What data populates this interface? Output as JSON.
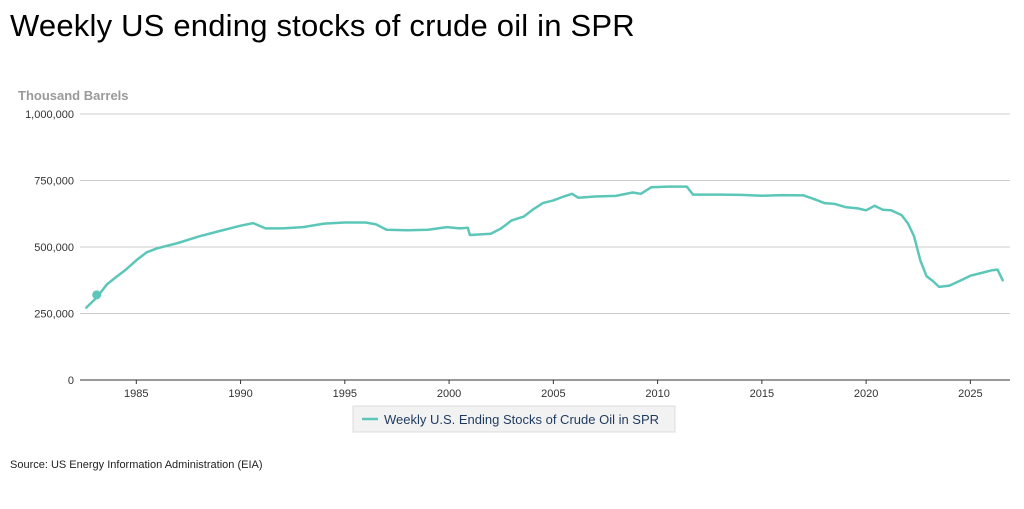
{
  "chart_data": {
    "type": "line",
    "title": "Weekly US ending stocks of crude oil in SPR",
    "ylabel": "Thousand Barrels",
    "xlabel": "",
    "xlim": [
      1982.3,
      2026.9
    ],
    "ylim": [
      0,
      1000000
    ],
    "x_ticks": [
      1985,
      1990,
      1995,
      2000,
      2005,
      2010,
      2015,
      2020,
      2025
    ],
    "y_ticks": [
      0,
      250000,
      500000,
      750000,
      1000000
    ],
    "y_tick_labels": [
      "0",
      "250,000",
      "500,000",
      "750,000",
      "1,000,000"
    ],
    "grid": "horizontal",
    "legend": "bottom-center",
    "source": "Source: US Energy Information Administration (EIA)",
    "colors": {
      "series": "#5cc7b8",
      "grid": "#cccccc",
      "axis": "#333333"
    },
    "series": [
      {
        "name": "Weekly U.S. Ending Stocks of Crude Oil in SPR",
        "marker": {
          "x": 1983.1,
          "y": 320000
        },
        "points": [
          [
            1982.6,
            272000
          ],
          [
            1983.1,
            310000
          ],
          [
            1983.6,
            360000
          ],
          [
            1984.0,
            385000
          ],
          [
            1984.5,
            415000
          ],
          [
            1985.0,
            450000
          ],
          [
            1985.5,
            480000
          ],
          [
            1986.0,
            495000
          ],
          [
            1987.0,
            515000
          ],
          [
            1988.0,
            540000
          ],
          [
            1989.0,
            560000
          ],
          [
            1990.0,
            580000
          ],
          [
            1990.6,
            590000
          ],
          [
            1991.2,
            570000
          ],
          [
            1992.0,
            570000
          ],
          [
            1993.0,
            575000
          ],
          [
            1994.0,
            588000
          ],
          [
            1995.0,
            592000
          ],
          [
            1996.0,
            592000
          ],
          [
            1996.5,
            585000
          ],
          [
            1997.0,
            565000
          ],
          [
            1998.0,
            563000
          ],
          [
            1999.0,
            565000
          ],
          [
            1999.9,
            575000
          ],
          [
            2000.5,
            570000
          ],
          [
            2000.9,
            572000
          ],
          [
            2001.0,
            545000
          ],
          [
            2002.0,
            550000
          ],
          [
            2002.5,
            570000
          ],
          [
            2003.0,
            600000
          ],
          [
            2003.6,
            615000
          ],
          [
            2004.0,
            640000
          ],
          [
            2004.5,
            665000
          ],
          [
            2005.0,
            675000
          ],
          [
            2005.5,
            690000
          ],
          [
            2005.9,
            700000
          ],
          [
            2006.2,
            685000
          ],
          [
            2007.0,
            690000
          ],
          [
            2008.0,
            692000
          ],
          [
            2008.8,
            705000
          ],
          [
            2009.2,
            700000
          ],
          [
            2009.7,
            725000
          ],
          [
            2010.5,
            727000
          ],
          [
            2011.4,
            727000
          ],
          [
            2011.7,
            697000
          ],
          [
            2013.0,
            697000
          ],
          [
            2014.0,
            696000
          ],
          [
            2015.0,
            693000
          ],
          [
            2016.0,
            695000
          ],
          [
            2017.0,
            694000
          ],
          [
            2017.5,
            680000
          ],
          [
            2018.0,
            665000
          ],
          [
            2018.5,
            662000
          ],
          [
            2019.0,
            650000
          ],
          [
            2019.6,
            645000
          ],
          [
            2020.0,
            638000
          ],
          [
            2020.4,
            655000
          ],
          [
            2020.8,
            640000
          ],
          [
            2021.2,
            638000
          ],
          [
            2021.7,
            620000
          ],
          [
            2022.0,
            590000
          ],
          [
            2022.3,
            540000
          ],
          [
            2022.6,
            450000
          ],
          [
            2022.9,
            390000
          ],
          [
            2023.2,
            372000
          ],
          [
            2023.5,
            350000
          ],
          [
            2024.0,
            355000
          ],
          [
            2024.5,
            373000
          ],
          [
            2025.0,
            392000
          ],
          [
            2025.5,
            402000
          ],
          [
            2026.0,
            412000
          ],
          [
            2026.3,
            415000
          ],
          [
            2026.55,
            375000
          ]
        ]
      }
    ]
  }
}
